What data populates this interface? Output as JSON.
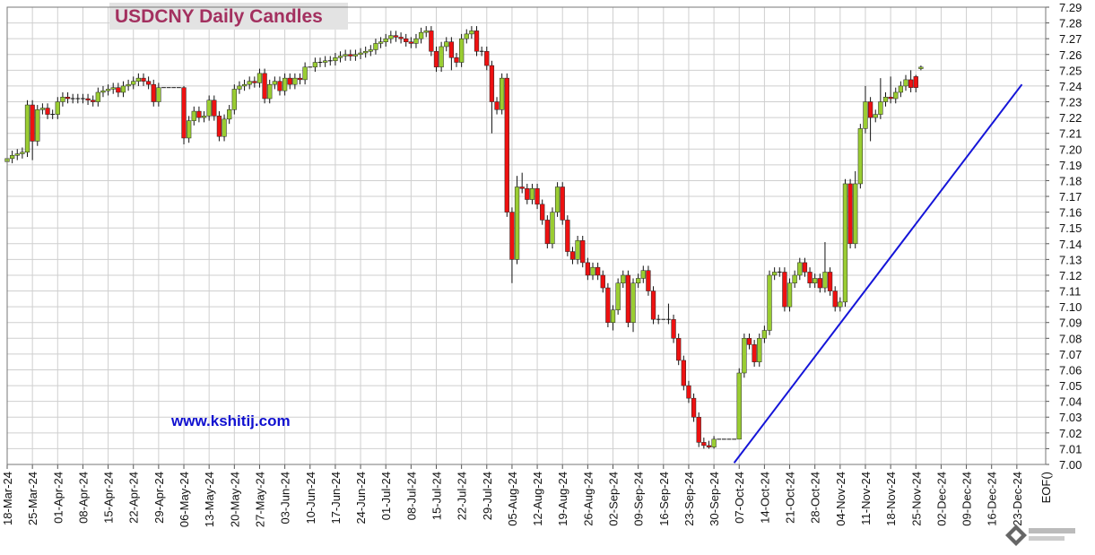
{
  "chart_data": {
    "type": "candlestick",
    "title": "USDCNY Daily Candles",
    "watermark": "www.kshitij.com",
    "x": [
      "2024-03-18",
      "2024-03-19",
      "2024-03-20",
      "2024-03-21",
      "2024-03-22",
      "2024-03-25",
      "2024-03-26",
      "2024-03-27",
      "2024-03-28",
      "2024-03-29",
      "2024-04-01",
      "2024-04-02",
      "2024-04-03",
      "2024-04-04",
      "2024-04-05",
      "2024-04-08",
      "2024-04-09",
      "2024-04-10",
      "2024-04-11",
      "2024-04-12",
      "2024-04-15",
      "2024-04-16",
      "2024-04-17",
      "2024-04-18",
      "2024-04-19",
      "2024-04-22",
      "2024-04-23",
      "2024-04-24",
      "2024-04-25",
      "2024-04-26",
      "2024-04-29",
      "2024-04-30",
      "2024-05-01",
      "2024-05-02",
      "2024-05-03",
      "2024-05-06",
      "2024-05-07",
      "2024-05-08",
      "2024-05-09",
      "2024-05-10",
      "2024-05-13",
      "2024-05-14",
      "2024-05-15",
      "2024-05-16",
      "2024-05-17",
      "2024-05-20",
      "2024-05-21",
      "2024-05-22",
      "2024-05-23",
      "2024-05-24",
      "2024-05-27",
      "2024-05-28",
      "2024-05-29",
      "2024-05-30",
      "2024-05-31",
      "2024-06-03",
      "2024-06-04",
      "2024-06-05",
      "2024-06-06",
      "2024-06-07",
      "2024-06-10",
      "2024-06-11",
      "2024-06-12",
      "2024-06-13",
      "2024-06-14",
      "2024-06-17",
      "2024-06-18",
      "2024-06-19",
      "2024-06-20",
      "2024-06-21",
      "2024-06-24",
      "2024-06-25",
      "2024-06-26",
      "2024-06-27",
      "2024-06-28",
      "2024-07-01",
      "2024-07-02",
      "2024-07-03",
      "2024-07-04",
      "2024-07-05",
      "2024-07-08",
      "2024-07-09",
      "2024-07-10",
      "2024-07-11",
      "2024-07-12",
      "2024-07-15",
      "2024-07-16",
      "2024-07-17",
      "2024-07-18",
      "2024-07-19",
      "2024-07-22",
      "2024-07-23",
      "2024-07-24",
      "2024-07-25",
      "2024-07-26",
      "2024-07-29",
      "2024-07-30",
      "2024-07-31",
      "2024-08-01",
      "2024-08-02",
      "2024-08-05",
      "2024-08-06",
      "2024-08-07",
      "2024-08-08",
      "2024-08-09",
      "2024-08-12",
      "2024-08-13",
      "2024-08-14",
      "2024-08-15",
      "2024-08-16",
      "2024-08-19",
      "2024-08-20",
      "2024-08-21",
      "2024-08-22",
      "2024-08-23",
      "2024-08-26",
      "2024-08-27",
      "2024-08-28",
      "2024-08-29",
      "2024-08-30",
      "2024-09-02",
      "2024-09-03",
      "2024-09-04",
      "2024-09-05",
      "2024-09-06",
      "2024-09-09",
      "2024-09-10",
      "2024-09-11",
      "2024-09-12",
      "2024-09-13",
      "2024-09-16",
      "2024-09-17",
      "2024-09-18",
      "2024-09-19",
      "2024-09-20",
      "2024-09-23",
      "2024-09-24",
      "2024-09-25",
      "2024-09-26",
      "2024-09-27",
      "2024-09-30",
      "2024-10-01",
      "2024-10-02",
      "2024-10-03",
      "2024-10-04",
      "2024-10-07",
      "2024-10-08",
      "2024-10-09",
      "2024-10-10",
      "2024-10-11",
      "2024-10-14",
      "2024-10-15",
      "2024-10-16",
      "2024-10-17",
      "2024-10-18",
      "2024-10-21",
      "2024-10-22",
      "2024-10-23",
      "2024-10-24",
      "2024-10-25",
      "2024-10-28",
      "2024-10-29",
      "2024-10-30",
      "2024-10-31",
      "2024-11-01",
      "2024-11-04",
      "2024-11-05",
      "2024-11-06",
      "2024-11-07",
      "2024-11-08",
      "2024-11-11",
      "2024-11-12",
      "2024-11-13",
      "2024-11-14",
      "2024-11-15",
      "2024-11-18",
      "2024-11-19",
      "2024-11-20",
      "2024-11-21",
      "2024-11-22",
      "2024-11-25",
      "2024-11-26"
    ],
    "open": [
      7.192,
      7.194,
      7.196,
      7.197,
      7.198,
      7.228,
      7.205,
      7.225,
      7.226,
      7.222,
      7.222,
      7.23,
      7.233,
      7.232,
      7.232,
      7.232,
      7.232,
      7.231,
      7.23,
      7.236,
      7.237,
      7.238,
      7.239,
      7.236,
      7.24,
      7.241,
      7.243,
      7.245,
      7.243,
      7.241,
      7.23,
      7.239,
      7.239,
      7.239,
      7.239,
      7.239,
      7.207,
      7.218,
      7.224,
      7.22,
      7.221,
      7.231,
      7.221,
      7.208,
      7.219,
      7.225,
      7.238,
      7.24,
      7.241,
      7.243,
      7.242,
      7.248,
      7.232,
      7.241,
      7.243,
      7.237,
      7.245,
      7.241,
      7.245,
      7.244,
      7.252,
      7.252,
      7.255,
      7.255,
      7.256,
      7.256,
      7.258,
      7.259,
      7.26,
      7.259,
      7.26,
      7.261,
      7.262,
      7.263,
      7.267,
      7.268,
      7.27,
      7.272,
      7.271,
      7.27,
      7.268,
      7.267,
      7.27,
      7.274,
      7.275,
      7.262,
      7.252,
      7.265,
      7.268,
      7.258,
      7.255,
      7.27,
      7.273,
      7.275,
      7.262,
      7.262,
      7.253,
      7.23,
      7.225,
      7.245,
      7.16,
      7.13,
      7.176,
      7.175,
      7.168,
      7.175,
      7.165,
      7.155,
      7.14,
      7.16,
      7.176,
      7.155,
      7.135,
      7.13,
      7.142,
      7.128,
      7.12,
      7.125,
      7.12,
      7.112,
      7.09,
      7.098,
      7.115,
      7.12,
      7.09,
      7.115,
      7.118,
      7.123,
      7.11,
      7.092,
      7.092,
      7.092,
      7.092,
      7.08,
      7.066,
      7.05,
      7.042,
      7.03,
      7.014,
      7.012,
      7.011,
      7.016,
      7.016,
      7.016,
      7.016,
      7.016,
      7.058,
      7.08,
      7.076,
      7.065,
      7.08,
      7.085,
      7.12,
      7.122,
      7.122,
      7.1,
      7.115,
      7.12,
      7.128,
      7.122,
      7.115,
      7.118,
      7.112,
      7.122,
      7.11,
      7.1,
      7.103,
      7.178,
      7.14,
      7.178,
      7.213,
      7.23,
      7.22,
      7.222,
      7.23,
      7.233,
      7.232,
      7.236,
      7.24,
      7.244,
      7.246,
      7.251
    ],
    "high": [
      7.197,
      7.199,
      7.2,
      7.201,
      7.231,
      7.231,
      7.228,
      7.229,
      7.229,
      7.225,
      7.233,
      7.236,
      7.236,
      7.235,
      7.235,
      7.235,
      7.235,
      7.234,
      7.239,
      7.24,
      7.241,
      7.242,
      7.242,
      7.243,
      7.244,
      7.246,
      7.248,
      7.248,
      7.246,
      7.244,
      7.242,
      7.239,
      7.239,
      7.239,
      7.239,
      7.24,
      7.221,
      7.227,
      7.227,
      7.224,
      7.234,
      7.234,
      7.224,
      7.222,
      7.228,
      7.241,
      7.243,
      7.244,
      7.246,
      7.246,
      7.251,
      7.251,
      7.244,
      7.246,
      7.246,
      7.248,
      7.248,
      7.248,
      7.248,
      7.255,
      7.252,
      7.258,
      7.258,
      7.259,
      7.259,
      7.261,
      7.262,
      7.263,
      7.263,
      7.263,
      7.264,
      7.265,
      7.266,
      7.27,
      7.271,
      7.273,
      7.275,
      7.275,
      7.274,
      7.273,
      7.271,
      7.273,
      7.277,
      7.278,
      7.278,
      7.265,
      7.268,
      7.271,
      7.271,
      7.261,
      7.273,
      7.276,
      7.278,
      7.278,
      7.265,
      7.265,
      7.256,
      7.233,
      7.248,
      7.248,
      7.163,
      7.183,
      7.185,
      7.178,
      7.178,
      7.178,
      7.168,
      7.158,
      7.163,
      7.179,
      7.179,
      7.158,
      7.138,
      7.145,
      7.145,
      7.131,
      7.128,
      7.128,
      7.123,
      7.115,
      7.101,
      7.118,
      7.123,
      7.123,
      7.118,
      7.121,
      7.126,
      7.126,
      7.113,
      7.095,
      7.092,
      7.102,
      7.095,
      7.083,
      7.069,
      7.053,
      7.045,
      7.033,
      7.017,
      7.015,
      7.018,
      7.016,
      7.016,
      7.016,
      7.016,
      7.061,
      7.083,
      7.083,
      7.079,
      7.083,
      7.088,
      7.123,
      7.125,
      7.125,
      7.125,
      7.118,
      7.123,
      7.131,
      7.131,
      7.125,
      7.121,
      7.121,
      7.141,
      7.125,
      7.113,
      7.106,
      7.181,
      7.181,
      7.186,
      7.216,
      7.24,
      7.233,
      7.225,
      7.245,
      7.236,
      7.246,
      7.239,
      7.243,
      7.247,
      7.25,
      7.247,
      7.253
    ],
    "low": [
      7.189,
      7.191,
      7.193,
      7.194,
      7.195,
      7.193,
      7.202,
      7.222,
      7.219,
      7.219,
      7.219,
      7.227,
      7.229,
      7.229,
      7.229,
      7.229,
      7.228,
      7.227,
      7.227,
      7.233,
      7.234,
      7.235,
      7.233,
      7.233,
      7.237,
      7.238,
      7.24,
      7.24,
      7.238,
      7.227,
      7.227,
      7.239,
      7.239,
      7.239,
      7.239,
      7.203,
      7.204,
      7.215,
      7.217,
      7.217,
      7.218,
      7.218,
      7.205,
      7.205,
      7.216,
      7.222,
      7.235,
      7.237,
      7.238,
      7.239,
      7.239,
      7.229,
      7.229,
      7.238,
      7.234,
      7.234,
      7.238,
      7.238,
      7.241,
      7.241,
      7.252,
      7.249,
      7.252,
      7.252,
      7.253,
      7.253,
      7.255,
      7.256,
      7.256,
      7.256,
      7.257,
      7.258,
      7.259,
      7.26,
      7.264,
      7.265,
      7.267,
      7.268,
      7.267,
      7.265,
      7.264,
      7.264,
      7.267,
      7.271,
      7.259,
      7.249,
      7.249,
      7.262,
      7.25,
      7.252,
      7.252,
      7.267,
      7.27,
      7.259,
      7.259,
      7.25,
      7.21,
      7.222,
      7.222,
      7.157,
      7.115,
      7.127,
      7.172,
      7.165,
      7.165,
      7.162,
      7.152,
      7.137,
      7.137,
      7.157,
      7.152,
      7.132,
      7.127,
      7.127,
      7.125,
      7.117,
      7.117,
      7.117,
      7.109,
      7.087,
      7.085,
      7.095,
      7.112,
      7.087,
      7.084,
      7.112,
      7.115,
      7.107,
      7.089,
      7.089,
      7.092,
      7.089,
      7.077,
      7.063,
      7.047,
      7.039,
      7.027,
      7.011,
      7.01,
      7.01,
      7.01,
      7.016,
      7.016,
      7.016,
      7.016,
      7.016,
      7.055,
      7.073,
      7.062,
      7.062,
      7.077,
      7.082,
      7.117,
      7.119,
      7.097,
      7.097,
      7.112,
      7.117,
      7.119,
      7.112,
      7.112,
      7.109,
      7.109,
      7.107,
      7.097,
      7.097,
      7.1,
      7.137,
      7.137,
      7.175,
      7.21,
      7.205,
      7.217,
      7.219,
      7.227,
      7.229,
      7.229,
      7.233,
      7.237,
      7.236,
      7.236,
      7.25
    ],
    "close": [
      7.194,
      7.196,
      7.197,
      7.198,
      7.228,
      7.205,
      7.225,
      7.226,
      7.222,
      7.222,
      7.23,
      7.233,
      7.232,
      7.232,
      7.232,
      7.232,
      7.231,
      7.23,
      7.236,
      7.237,
      7.238,
      7.239,
      7.236,
      7.24,
      7.241,
      7.243,
      7.245,
      7.243,
      7.241,
      7.23,
      7.239,
      7.239,
      7.239,
      7.239,
      7.239,
      7.207,
      7.218,
      7.224,
      7.22,
      7.221,
      7.231,
      7.221,
      7.208,
      7.219,
      7.225,
      7.238,
      7.24,
      7.241,
      7.243,
      7.242,
      7.248,
      7.232,
      7.241,
      7.243,
      7.237,
      7.245,
      7.241,
      7.245,
      7.244,
      7.252,
      7.252,
      7.255,
      7.255,
      7.256,
      7.256,
      7.258,
      7.259,
      7.26,
      7.259,
      7.26,
      7.261,
      7.262,
      7.263,
      7.267,
      7.268,
      7.27,
      7.272,
      7.271,
      7.27,
      7.268,
      7.267,
      7.27,
      7.274,
      7.275,
      7.262,
      7.252,
      7.265,
      7.268,
      7.258,
      7.255,
      7.27,
      7.273,
      7.275,
      7.262,
      7.262,
      7.253,
      7.23,
      7.225,
      7.245,
      7.16,
      7.13,
      7.176,
      7.175,
      7.168,
      7.175,
      7.165,
      7.155,
      7.14,
      7.16,
      7.176,
      7.155,
      7.135,
      7.13,
      7.142,
      7.128,
      7.12,
      7.125,
      7.12,
      7.112,
      7.09,
      7.098,
      7.115,
      7.12,
      7.09,
      7.115,
      7.118,
      7.123,
      7.11,
      7.092,
      7.092,
      7.092,
      7.092,
      7.08,
      7.066,
      7.05,
      7.042,
      7.03,
      7.014,
      7.012,
      7.011,
      7.016,
      7.016,
      7.016,
      7.016,
      7.016,
      7.058,
      7.08,
      7.076,
      7.065,
      7.08,
      7.085,
      7.12,
      7.122,
      7.122,
      7.1,
      7.115,
      7.12,
      7.128,
      7.122,
      7.115,
      7.118,
      7.112,
      7.122,
      7.11,
      7.1,
      7.103,
      7.178,
      7.14,
      7.178,
      7.213,
      7.23,
      7.22,
      7.222,
      7.23,
      7.233,
      7.232,
      7.236,
      7.24,
      7.244,
      7.239,
      7.239,
      7.252
    ],
    "up_color": "#9acd32",
    "down_color": "#ee1111",
    "xlim": [
      "2024-03-18",
      "2024-12-30"
    ],
    "xticks": [
      {
        "value": "2024-03-18",
        "label": "18-Mar-24"
      },
      {
        "value": "2024-03-25",
        "label": "25-Mar-24"
      },
      {
        "value": "2024-04-01",
        "label": "01-Apr-24"
      },
      {
        "value": "2024-04-08",
        "label": "08-Apr-24"
      },
      {
        "value": "2024-04-15",
        "label": "15-Apr-24"
      },
      {
        "value": "2024-04-22",
        "label": "22-Apr-24"
      },
      {
        "value": "2024-04-29",
        "label": "29-Apr-24"
      },
      {
        "value": "2024-05-06",
        "label": "06-May-24"
      },
      {
        "value": "2024-05-13",
        "label": "13-May-24"
      },
      {
        "value": "2024-05-20",
        "label": "20-May-24"
      },
      {
        "value": "2024-05-27",
        "label": "27-May-24"
      },
      {
        "value": "2024-06-03",
        "label": "03-Jun-24"
      },
      {
        "value": "2024-06-10",
        "label": "10-Jun-24"
      },
      {
        "value": "2024-06-17",
        "label": "17-Jun-24"
      },
      {
        "value": "2024-06-24",
        "label": "24-Jun-24"
      },
      {
        "value": "2024-07-01",
        "label": "01-Jul-24"
      },
      {
        "value": "2024-07-08",
        "label": "08-Jul-24"
      },
      {
        "value": "2024-07-15",
        "label": "15-Jul-24"
      },
      {
        "value": "2024-07-22",
        "label": "22-Jul-24"
      },
      {
        "value": "2024-07-29",
        "label": "29-Jul-24"
      },
      {
        "value": "2024-08-05",
        "label": "05-Aug-24"
      },
      {
        "value": "2024-08-12",
        "label": "12-Aug-24"
      },
      {
        "value": "2024-08-19",
        "label": "19-Aug-24"
      },
      {
        "value": "2024-08-26",
        "label": "26-Aug-24"
      },
      {
        "value": "2024-09-02",
        "label": "02-Sep-24"
      },
      {
        "value": "2024-09-09",
        "label": "09-Sep-24"
      },
      {
        "value": "2024-09-16",
        "label": "16-Sep-24"
      },
      {
        "value": "2024-09-23",
        "label": "23-Sep-24"
      },
      {
        "value": "2024-09-30",
        "label": "30-Sep-24"
      },
      {
        "value": "2024-10-07",
        "label": "07-Oct-24"
      },
      {
        "value": "2024-10-14",
        "label": "14-Oct-24"
      },
      {
        "value": "2024-10-21",
        "label": "21-Oct-24"
      },
      {
        "value": "2024-10-28",
        "label": "28-Oct-24"
      },
      {
        "value": "2024-11-04",
        "label": "04-Nov-24"
      },
      {
        "value": "2024-11-11",
        "label": "11-Nov-24"
      },
      {
        "value": "2024-11-18",
        "label": "18-Nov-24"
      },
      {
        "value": "2024-11-25",
        "label": "25-Nov-24"
      },
      {
        "value": "2024-12-02",
        "label": "02-Dec-24"
      },
      {
        "value": "2024-12-09",
        "label": "09-Dec-24"
      },
      {
        "value": "2024-12-16",
        "label": "16-Dec-24"
      },
      {
        "value": "2024-12-23",
        "label": "23-Dec-24"
      }
    ],
    "x_end_label": "EOF()",
    "ylim": [
      7.0,
      7.29
    ],
    "yticks": [
      {
        "value": 7.0,
        "label": "7.00"
      },
      7.01,
      7.02,
      7.03,
      7.04,
      7.05,
      7.06,
      7.07,
      7.08,
      7.09,
      {
        "value": 7.1,
        "label": "7.10"
      },
      7.11,
      7.12,
      7.13,
      7.14,
      7.15,
      7.16,
      7.17,
      7.18,
      7.19,
      {
        "value": 7.2,
        "label": "7.20"
      },
      7.21,
      7.22,
      7.23,
      7.24,
      7.25,
      7.26,
      7.27,
      7.28,
      7.29
    ],
    "grid": true,
    "trendline": {
      "x": [
        "2024-10-04",
        "2024-12-24"
      ],
      "y": [
        7.001,
        7.241
      ],
      "color": "#1515d8"
    }
  }
}
